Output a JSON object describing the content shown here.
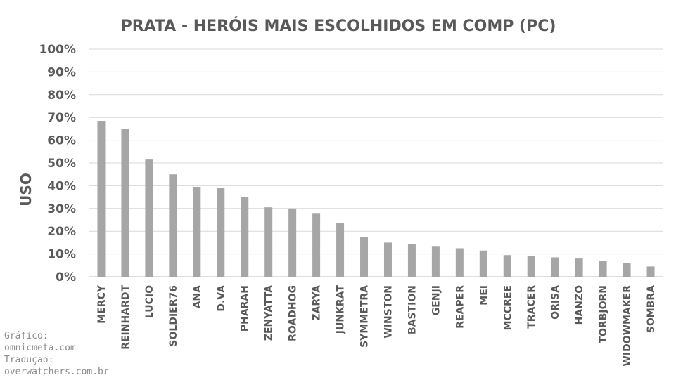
{
  "chart_data": {
    "type": "bar",
    "title": "PRATA - HERÓIS MAIS ESCOLHIDOS EM COMP (PC)",
    "xlabel": "",
    "ylabel": "USO",
    "ylim": [
      0,
      100
    ],
    "ytick_labels": [
      "0%",
      "10%",
      "20%",
      "30%",
      "40%",
      "50%",
      "60%",
      "70%",
      "80%",
      "90%",
      "100%"
    ],
    "grid": true,
    "bar_color": "#a6a6a6",
    "categories": [
      "MERCY",
      "REINHARDT",
      "LUCIO",
      "SOLDIER76",
      "ANA",
      "D.VA",
      "PHARAH",
      "ZENYATTA",
      "ROADHOG",
      "ZARYA",
      "JUNKRAT",
      "SYMMETRA",
      "WINSTON",
      "BASTION",
      "GENJI",
      "REAPER",
      "MEI",
      "MCCREE",
      "TRACER",
      "ORISA",
      "HANZO",
      "TORBJORN",
      "WIDOWMAKER",
      "SOMBRA"
    ],
    "values": [
      68.5,
      65,
      51.5,
      45,
      39.5,
      39,
      35,
      30.5,
      30,
      28,
      23.5,
      17.5,
      15,
      14.5,
      13.5,
      12.5,
      11.5,
      9.5,
      9,
      8.5,
      8,
      7,
      6,
      4.5
    ]
  },
  "credits": {
    "line1": "Gráfico:",
    "line2": "omnicmeta.com",
    "line3": "Traduçao:",
    "line4": "overwatchers.com.br"
  }
}
